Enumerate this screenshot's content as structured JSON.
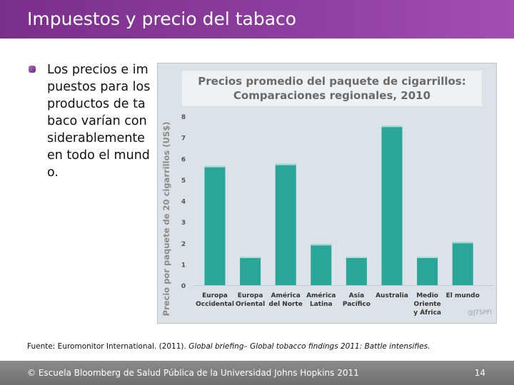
{
  "slide": {
    "title": "Impuestos y precio del tabaco",
    "bullet": "Los precios e impuestos para los productos de tabaco varían considerablemente en todo el mundo.",
    "source_prefix": "Fuente: Euromonitor International. (2011). ",
    "source_italic": "Global briefing– Global tobacco findings 2011: Battle intensifies.",
    "footer_copyright": "© Escuela Bloomberg de Salud Pública de la Universidad Johns Hopkins 2011",
    "page_number": "14"
  },
  "chart_data": {
    "type": "bar",
    "title": "Precios promedio del paquete de cigarrillos:",
    "subtitle": "Comparaciones regionales, 2010",
    "ylabel": "Precio por paquete de 20 cigarrillos (US$)",
    "xlabel": "",
    "ylim": [
      0,
      8
    ],
    "yticks": [
      "0",
      "1",
      "2",
      "3",
      "4",
      "5",
      "6",
      "7",
      "8"
    ],
    "categories": [
      [
        "Europa",
        "Occidental"
      ],
      [
        "Europa",
        "Oriental"
      ],
      [
        "América",
        "del Norte"
      ],
      [
        "América",
        "Latina"
      ],
      [
        "Asia",
        "Pacífico"
      ],
      [
        "Australia"
      ],
      [
        "Medio",
        "Oriente",
        "y África"
      ],
      [
        "El mundo"
      ]
    ],
    "values": [
      5.65,
      1.35,
      5.75,
      1.95,
      1.35,
      7.55,
      1.35,
      2.05
    ],
    "bar_color": "#2aa597",
    "watermark": "@JTSPFI",
    "grid": false,
    "legend": "none"
  }
}
